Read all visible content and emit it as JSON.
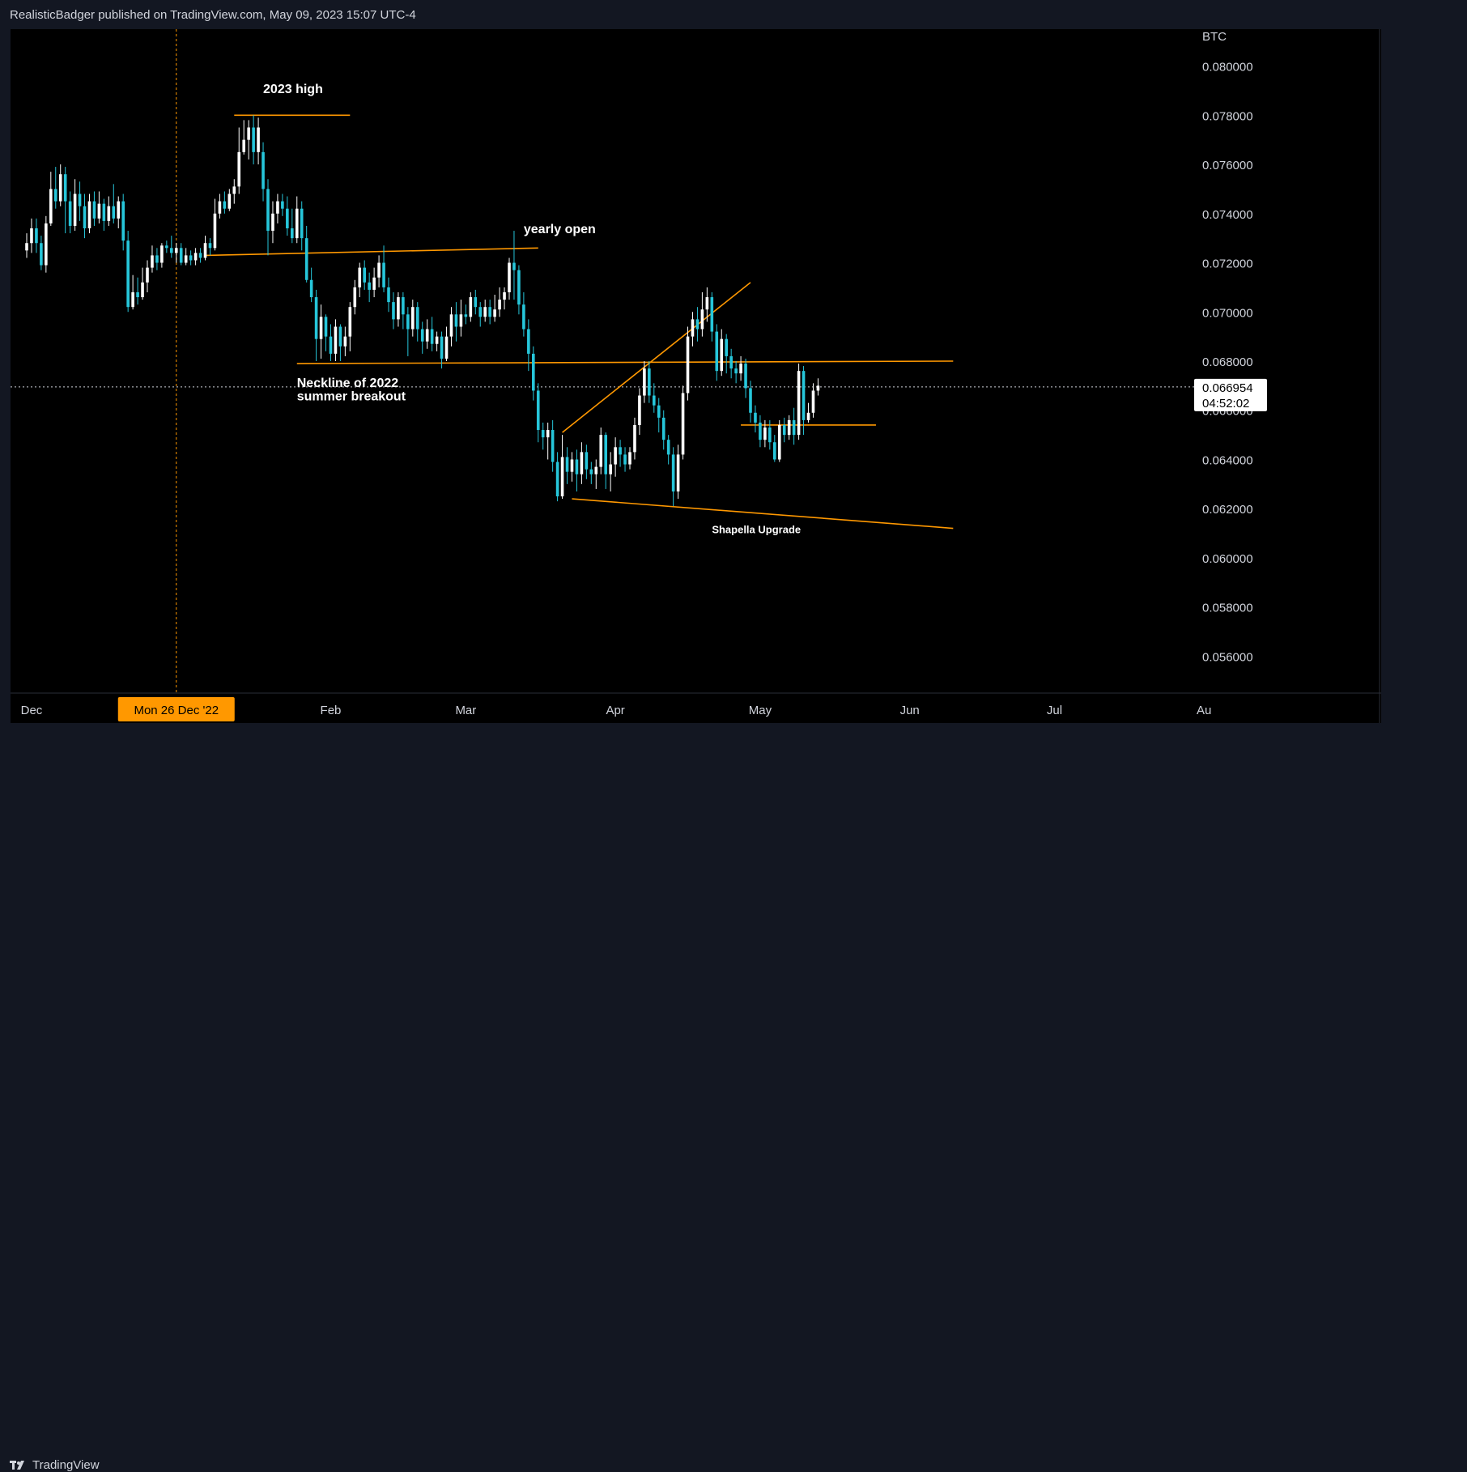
{
  "header": {
    "attribution": "RealisticBadger published on TradingView.com, May 09, 2023 15:07 UTC-4"
  },
  "footer": {
    "brand": "TradingView"
  },
  "colors": {
    "up": "#ffffff",
    "down": "#26c6da",
    "line": "#ff9800",
    "background": "#000000",
    "axis_text": "#d1d4dc"
  },
  "chart_data": {
    "type": "candlestick",
    "symbol_unit": "BTC",
    "last_price": "0.066954",
    "countdown": "04:52:02",
    "crosshair_label": "Mon 26 Dec '22",
    "ylim": [
      0.0545,
      0.0815
    ],
    "y_ticks": [
      "0.080000",
      "0.078000",
      "0.076000",
      "0.074000",
      "0.072000",
      "0.070000",
      "0.068000",
      "0.066000",
      "0.064000",
      "0.062000",
      "0.060000",
      "0.058000",
      "0.056000"
    ],
    "x_ticks": [
      {
        "label": "Dec",
        "day": 1
      },
      {
        "label": "Feb",
        "day": 63
      },
      {
        "label": "Mar",
        "day": 91
      },
      {
        "label": "Apr",
        "day": 122
      },
      {
        "label": "May",
        "day": 152
      },
      {
        "label": "Jun",
        "day": 183
      },
      {
        "label": "Jul",
        "day": 213
      },
      {
        "label": "Au",
        "day": 244
      }
    ],
    "annotations": [
      {
        "text": "2023 high",
        "day": 49,
        "price": 0.0789
      },
      {
        "text": "yearly open",
        "day": 103,
        "price": 0.0732
      },
      {
        "text": "Neckline of 2022",
        "day": 56,
        "price": 0.06695
      },
      {
        "text": "summer breakout",
        "day": 56,
        "price": 0.0664
      },
      {
        "text": "Shapella Upgrade",
        "day": 142,
        "price": 0.061
      }
    ],
    "trend_lines": [
      {
        "name": "2023-high-line",
        "from": [
          43,
          0.078
        ],
        "to": [
          67,
          0.078
        ]
      },
      {
        "name": "yearly-open-line",
        "from": [
          37,
          0.0723
        ],
        "to": [
          106,
          0.0726
        ]
      },
      {
        "name": "neckline",
        "from": [
          56,
          0.0679
        ],
        "to": [
          192,
          0.068
        ]
      },
      {
        "name": "rising-channel-line",
        "from": [
          111,
          0.0651
        ],
        "to": [
          150,
          0.0712
        ]
      },
      {
        "name": "lower-support-line",
        "from": [
          113,
          0.0624
        ],
        "to": [
          192,
          0.0612
        ]
      },
      {
        "name": "range-support-line",
        "from": [
          148,
          0.0654
        ],
        "to": [
          176,
          0.0654
        ]
      }
    ],
    "crosshair": {
      "day": 31,
      "price": 0.06695
    },
    "candles": [
      [
        0,
        0.0725,
        0.0728,
        0.0732,
        0.0722
      ],
      [
        1,
        0.0728,
        0.0734,
        0.0738,
        0.0724
      ],
      [
        2,
        0.0734,
        0.0728,
        0.0738,
        0.0724
      ],
      [
        3,
        0.0728,
        0.0719,
        0.0731,
        0.0717
      ],
      [
        4,
        0.0719,
        0.0736,
        0.0739,
        0.0716
      ],
      [
        5,
        0.0736,
        0.075,
        0.0757,
        0.0735
      ],
      [
        6,
        0.075,
        0.0745,
        0.0759,
        0.0742
      ],
      [
        7,
        0.0745,
        0.0756,
        0.076,
        0.0743
      ],
      [
        8,
        0.0756,
        0.0745,
        0.0759,
        0.0732
      ],
      [
        9,
        0.0745,
        0.0735,
        0.0749,
        0.0732
      ],
      [
        10,
        0.0735,
        0.0748,
        0.0754,
        0.0733
      ],
      [
        11,
        0.0748,
        0.0743,
        0.0753,
        0.0737
      ],
      [
        12,
        0.0743,
        0.0734,
        0.0748,
        0.073
      ],
      [
        13,
        0.0734,
        0.0745,
        0.0748,
        0.0732
      ],
      [
        14,
        0.0745,
        0.0738,
        0.0749,
        0.0735
      ],
      [
        15,
        0.0738,
        0.0744,
        0.0749,
        0.0736
      ],
      [
        16,
        0.0744,
        0.0737,
        0.0746,
        0.0733
      ],
      [
        17,
        0.0737,
        0.0743,
        0.0747,
        0.0735
      ],
      [
        18,
        0.0743,
        0.0738,
        0.0752,
        0.0736
      ],
      [
        19,
        0.0738,
        0.0745,
        0.0747,
        0.0734
      ],
      [
        20,
        0.0745,
        0.0729,
        0.0748,
        0.0725
      ],
      [
        21,
        0.0729,
        0.0702,
        0.0733,
        0.07
      ],
      [
        22,
        0.0702,
        0.0708,
        0.0715,
        0.0701
      ],
      [
        23,
        0.0708,
        0.0706,
        0.0714,
        0.0703
      ],
      [
        24,
        0.0706,
        0.0712,
        0.0718,
        0.0705
      ],
      [
        25,
        0.0712,
        0.0718,
        0.0721,
        0.0708
      ],
      [
        26,
        0.0718,
        0.0723,
        0.0727,
        0.0716
      ],
      [
        27,
        0.0723,
        0.072,
        0.0726,
        0.0717
      ],
      [
        28,
        0.072,
        0.0727,
        0.0728,
        0.0718
      ],
      [
        29,
        0.0727,
        0.0726,
        0.0729,
        0.0724
      ],
      [
        30,
        0.0726,
        0.0724,
        0.0731,
        0.0722
      ],
      [
        31,
        0.0724,
        0.0726,
        0.0728,
        0.072
      ],
      [
        32,
        0.0726,
        0.072,
        0.0728,
        0.0719
      ],
      [
        33,
        0.072,
        0.0723,
        0.0726,
        0.0719
      ],
      [
        34,
        0.0723,
        0.0721,
        0.0725,
        0.0719
      ],
      [
        35,
        0.0721,
        0.0724,
        0.0726,
        0.0719
      ],
      [
        36,
        0.0724,
        0.0722,
        0.0726,
        0.072
      ],
      [
        37,
        0.0722,
        0.0728,
        0.0731,
        0.0721
      ],
      [
        38,
        0.0728,
        0.0726,
        0.073,
        0.0723
      ],
      [
        39,
        0.0726,
        0.074,
        0.0746,
        0.0725
      ],
      [
        40,
        0.074,
        0.0745,
        0.0748,
        0.0738
      ],
      [
        41,
        0.0745,
        0.0742,
        0.0749,
        0.074
      ],
      [
        42,
        0.0742,
        0.0748,
        0.075,
        0.0741
      ],
      [
        43,
        0.0748,
        0.0751,
        0.0754,
        0.0744
      ],
      [
        44,
        0.0751,
        0.0765,
        0.0775,
        0.0748
      ],
      [
        45,
        0.0765,
        0.077,
        0.0778,
        0.0764
      ],
      [
        46,
        0.077,
        0.0775,
        0.0778,
        0.0762
      ],
      [
        47,
        0.0775,
        0.0765,
        0.078,
        0.076
      ],
      [
        48,
        0.0765,
        0.0775,
        0.0779,
        0.076
      ],
      [
        49,
        0.0765,
        0.075,
        0.0769,
        0.0745
      ],
      [
        50,
        0.075,
        0.0733,
        0.0754,
        0.0723
      ],
      [
        51,
        0.0733,
        0.074,
        0.0745,
        0.0728
      ],
      [
        52,
        0.074,
        0.0745,
        0.0748,
        0.0736
      ],
      [
        53,
        0.0745,
        0.0742,
        0.0748,
        0.0739
      ],
      [
        54,
        0.0742,
        0.0734,
        0.0747,
        0.0731
      ],
      [
        55,
        0.0734,
        0.073,
        0.0742,
        0.0728
      ],
      [
        56,
        0.073,
        0.0742,
        0.0747,
        0.0728
      ],
      [
        57,
        0.0742,
        0.073,
        0.0745,
        0.0725
      ],
      [
        58,
        0.073,
        0.0713,
        0.0735,
        0.0712
      ],
      [
        59,
        0.0713,
        0.0706,
        0.0718,
        0.0704
      ],
      [
        60,
        0.0706,
        0.0689,
        0.0709,
        0.068
      ],
      [
        61,
        0.0689,
        0.0698,
        0.0703,
        0.0681
      ],
      [
        62,
        0.0698,
        0.069,
        0.0699,
        0.0684
      ],
      [
        63,
        0.069,
        0.0683,
        0.0695,
        0.068
      ],
      [
        64,
        0.0683,
        0.0694,
        0.0697,
        0.068
      ],
      [
        65,
        0.0694,
        0.0686,
        0.0695,
        0.068
      ],
      [
        66,
        0.0686,
        0.069,
        0.0694,
        0.0682
      ],
      [
        67,
        0.069,
        0.0702,
        0.0704,
        0.0684
      ],
      [
        68,
        0.0702,
        0.071,
        0.0713,
        0.0699
      ],
      [
        69,
        0.071,
        0.0718,
        0.072,
        0.0706
      ],
      [
        70,
        0.0718,
        0.0712,
        0.0721,
        0.0709
      ],
      [
        71,
        0.0712,
        0.0709,
        0.0716,
        0.0704
      ],
      [
        72,
        0.0709,
        0.0714,
        0.0718,
        0.0706
      ],
      [
        73,
        0.0714,
        0.072,
        0.0723,
        0.071
      ],
      [
        74,
        0.072,
        0.071,
        0.0727,
        0.0708
      ],
      [
        75,
        0.071,
        0.0704,
        0.0714,
        0.07
      ],
      [
        76,
        0.0704,
        0.0697,
        0.0708,
        0.0693
      ],
      [
        77,
        0.0697,
        0.0706,
        0.0708,
        0.0694
      ],
      [
        78,
        0.0706,
        0.0699,
        0.0708,
        0.0693
      ],
      [
        79,
        0.0699,
        0.0693,
        0.0702,
        0.0682
      ],
      [
        80,
        0.0693,
        0.0702,
        0.0705,
        0.069
      ],
      [
        81,
        0.0702,
        0.0693,
        0.0704,
        0.0688
      ],
      [
        82,
        0.0693,
        0.0688,
        0.0696,
        0.0683
      ],
      [
        83,
        0.0688,
        0.0693,
        0.0697,
        0.0685
      ],
      [
        84,
        0.0693,
        0.0687,
        0.0698,
        0.0684
      ],
      [
        85,
        0.0687,
        0.069,
        0.0692,
        0.0684
      ],
      [
        86,
        0.069,
        0.0681,
        0.0692,
        0.0677
      ],
      [
        87,
        0.0681,
        0.069,
        0.0694,
        0.068
      ],
      [
        88,
        0.069,
        0.0699,
        0.0702,
        0.0686
      ],
      [
        89,
        0.0699,
        0.0694,
        0.0704,
        0.0688
      ],
      [
        90,
        0.0694,
        0.0699,
        0.0705,
        0.069
      ],
      [
        91,
        0.0699,
        0.0698,
        0.0703,
        0.0695
      ],
      [
        92,
        0.0698,
        0.0706,
        0.0708,
        0.0696
      ],
      [
        93,
        0.0706,
        0.0702,
        0.0709,
        0.0699
      ],
      [
        94,
        0.0702,
        0.0698,
        0.0704,
        0.0694
      ],
      [
        95,
        0.0698,
        0.0702,
        0.0705,
        0.0696
      ],
      [
        96,
        0.0702,
        0.0698,
        0.0705,
        0.0695
      ],
      [
        97,
        0.0698,
        0.0701,
        0.0707,
        0.0696
      ],
      [
        98,
        0.0701,
        0.0705,
        0.071,
        0.0698
      ],
      [
        99,
        0.0705,
        0.0708,
        0.071,
        0.0701
      ],
      [
        100,
        0.0708,
        0.072,
        0.0722,
        0.0705
      ],
      [
        101,
        0.072,
        0.0717,
        0.0733,
        0.0705
      ],
      [
        102,
        0.0717,
        0.0703,
        0.0719,
        0.0699
      ],
      [
        103,
        0.0703,
        0.0693,
        0.0708,
        0.069
      ],
      [
        104,
        0.0693,
        0.0683,
        0.0697,
        0.0676
      ],
      [
        105,
        0.0683,
        0.0668,
        0.0686,
        0.0664
      ],
      [
        106,
        0.0668,
        0.0652,
        0.0671,
        0.0647
      ],
      [
        107,
        0.0652,
        0.0649,
        0.0655,
        0.0644
      ],
      [
        108,
        0.0649,
        0.0652,
        0.0655,
        0.064
      ],
      [
        109,
        0.0652,
        0.0639,
        0.0656,
        0.0635
      ],
      [
        110,
        0.0639,
        0.0625,
        0.0643,
        0.0623
      ],
      [
        111,
        0.0625,
        0.0641,
        0.065,
        0.0624
      ],
      [
        112,
        0.0641,
        0.0635,
        0.0645,
        0.063
      ],
      [
        113,
        0.0635,
        0.064,
        0.0643,
        0.0631
      ],
      [
        114,
        0.064,
        0.0634,
        0.0644,
        0.0627
      ],
      [
        115,
        0.0634,
        0.0643,
        0.0647,
        0.063
      ],
      [
        116,
        0.0643,
        0.0636,
        0.0646,
        0.0632
      ],
      [
        117,
        0.0636,
        0.0634,
        0.0639,
        0.063
      ],
      [
        118,
        0.0634,
        0.0637,
        0.064,
        0.0628
      ],
      [
        119,
        0.0637,
        0.065,
        0.0653,
        0.0634
      ],
      [
        120,
        0.065,
        0.0634,
        0.0651,
        0.0628
      ],
      [
        121,
        0.0634,
        0.0638,
        0.0643,
        0.0627
      ],
      [
        122,
        0.0638,
        0.0645,
        0.0649,
        0.0633
      ],
      [
        123,
        0.0645,
        0.0642,
        0.0648,
        0.0637
      ],
      [
        124,
        0.0642,
        0.0638,
        0.0645,
        0.0635
      ],
      [
        125,
        0.0638,
        0.0643,
        0.0645,
        0.0636
      ],
      [
        126,
        0.0643,
        0.0654,
        0.0657,
        0.064
      ],
      [
        127,
        0.0654,
        0.0666,
        0.0669,
        0.065
      ],
      [
        128,
        0.0666,
        0.0677,
        0.068,
        0.0663
      ],
      [
        129,
        0.0677,
        0.0666,
        0.068,
        0.0663
      ],
      [
        130,
        0.0666,
        0.0662,
        0.0671,
        0.0659
      ],
      [
        131,
        0.0662,
        0.0657,
        0.0665,
        0.0651
      ],
      [
        132,
        0.0657,
        0.0648,
        0.066,
        0.0644
      ],
      [
        133,
        0.0648,
        0.0642,
        0.065,
        0.0638
      ],
      [
        134,
        0.0642,
        0.0627,
        0.0645,
        0.0621
      ],
      [
        135,
        0.0627,
        0.0642,
        0.0646,
        0.0624
      ],
      [
        136,
        0.0642,
        0.0667,
        0.067,
        0.064
      ],
      [
        137,
        0.0667,
        0.069,
        0.0694,
        0.0664
      ],
      [
        138,
        0.069,
        0.0697,
        0.07,
        0.0686
      ],
      [
        139,
        0.0697,
        0.0693,
        0.0702,
        0.0688
      ],
      [
        140,
        0.0693,
        0.0701,
        0.0708,
        0.069
      ],
      [
        141,
        0.0701,
        0.0706,
        0.071,
        0.0696
      ],
      [
        142,
        0.0706,
        0.0692,
        0.0708,
        0.0688
      ],
      [
        143,
        0.0692,
        0.0676,
        0.0695,
        0.0672
      ],
      [
        144,
        0.0676,
        0.0689,
        0.0693,
        0.0674
      ],
      [
        145,
        0.0689,
        0.0682,
        0.0691,
        0.0675
      ],
      [
        146,
        0.0682,
        0.0677,
        0.0685,
        0.0673
      ],
      [
        147,
        0.0677,
        0.0675,
        0.068,
        0.0671
      ],
      [
        148,
        0.0675,
        0.0679,
        0.0682,
        0.0672
      ],
      [
        149,
        0.0679,
        0.0669,
        0.0681,
        0.0665
      ],
      [
        150,
        0.0669,
        0.0659,
        0.0672,
        0.0655
      ],
      [
        151,
        0.0659,
        0.0655,
        0.0662,
        0.0651
      ],
      [
        152,
        0.0655,
        0.0648,
        0.0658,
        0.0645
      ],
      [
        153,
        0.0648,
        0.0653,
        0.0656,
        0.0645
      ],
      [
        154,
        0.0653,
        0.0647,
        0.0656,
        0.0644
      ],
      [
        155,
        0.0647,
        0.064,
        0.065,
        0.0639
      ],
      [
        156,
        0.064,
        0.0654,
        0.0656,
        0.0639
      ],
      [
        157,
        0.0654,
        0.065,
        0.0657,
        0.0647
      ],
      [
        158,
        0.065,
        0.0656,
        0.0658,
        0.0648
      ],
      [
        159,
        0.0656,
        0.065,
        0.0661,
        0.0646
      ],
      [
        160,
        0.065,
        0.0676,
        0.0679,
        0.0648
      ],
      [
        161,
        0.0676,
        0.0656,
        0.0678,
        0.065
      ],
      [
        162,
        0.0656,
        0.0659,
        0.0663,
        0.0655
      ],
      [
        163,
        0.0659,
        0.0668,
        0.0671,
        0.0657
      ],
      [
        164,
        0.0668,
        0.067,
        0.0673,
        0.0666
      ]
    ]
  }
}
